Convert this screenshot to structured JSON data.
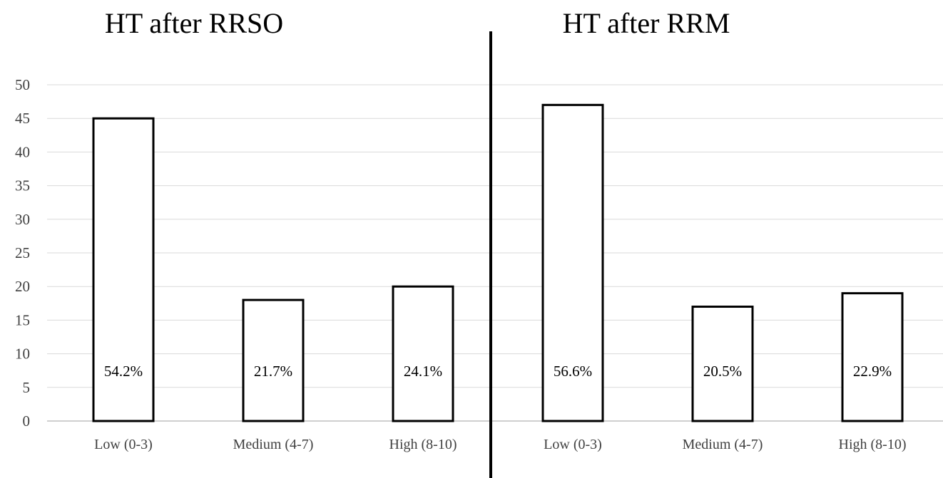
{
  "chart_data": {
    "type": "bar",
    "y_ticks": [
      "0",
      "5",
      "10",
      "15",
      "20",
      "25",
      "30",
      "35",
      "40",
      "45",
      "50"
    ],
    "ylim": [
      0,
      50
    ],
    "grid": true,
    "panels": [
      {
        "title": "HT after RRSO",
        "categories": [
          "Low (0-3)",
          "Medium (4-7)",
          "High (8-10)"
        ],
        "values": [
          45,
          18,
          20
        ],
        "labels": [
          "54.2%",
          "21.7%",
          "24.1%"
        ]
      },
      {
        "title": "HT after RRM",
        "categories": [
          "Low (0-3)",
          "Medium (4-7)",
          "High (8-10)"
        ],
        "values": [
          47,
          17,
          19
        ],
        "labels": [
          "56.6%",
          "20.5%",
          "22.9%"
        ]
      }
    ],
    "colors": {
      "bar_fill": "#ffffff",
      "bar_stroke": "#000000",
      "grid": "#d9d9d9",
      "divider": "#000000"
    }
  }
}
